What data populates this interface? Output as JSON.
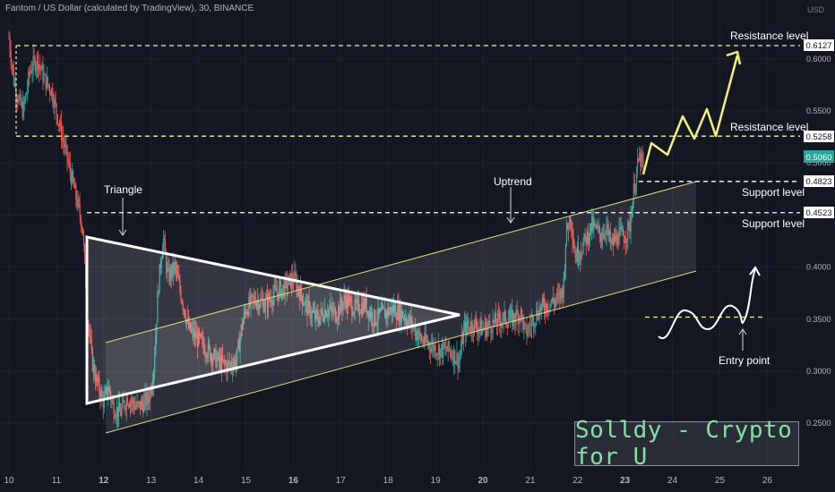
{
  "header": {
    "title": "Fantom / US Dollar (calculated by TradingView), 30, BINANCE",
    "currency": "USD"
  },
  "watermark": "Solldy - Crypto for U",
  "chart_data": {
    "type": "candlestick",
    "price_axis": {
      "min": 0.2,
      "max": 0.66,
      "ticks": [
        0.25,
        0.3,
        0.35,
        0.4,
        0.45,
        0.5,
        0.55,
        0.6
      ],
      "tick_labels": [
        "0.2500",
        "0.3000",
        "0.3500",
        "0.4000",
        "0.4500",
        "0.5000",
        "0.5500",
        "0.6000"
      ]
    },
    "time_axis": {
      "ticks": [
        10,
        11,
        12,
        13,
        14,
        15,
        16,
        17,
        18,
        19,
        20,
        21,
        22,
        23,
        24,
        25,
        26
      ],
      "tick_labels": [
        "10",
        "11",
        "12",
        "13",
        "14",
        "15",
        "16",
        "17",
        "18",
        "19",
        "20",
        "21",
        "22",
        "23",
        "24",
        "25",
        "26"
      ],
      "bold": [
        "12",
        "16",
        "20",
        "23"
      ]
    },
    "price_path": [
      [
        10.0,
        0.62
      ],
      [
        10.1,
        0.58
      ],
      [
        10.2,
        0.56
      ],
      [
        10.3,
        0.55
      ],
      [
        10.45,
        0.59
      ],
      [
        10.6,
        0.6
      ],
      [
        10.75,
        0.58
      ],
      [
        10.9,
        0.57
      ],
      [
        11.0,
        0.55
      ],
      [
        11.1,
        0.53
      ],
      [
        11.25,
        0.5
      ],
      [
        11.4,
        0.47
      ],
      [
        11.55,
        0.44
      ],
      [
        11.65,
        0.36
      ],
      [
        11.75,
        0.31
      ],
      [
        11.85,
        0.29
      ],
      [
        12.0,
        0.27
      ],
      [
        12.1,
        0.285
      ],
      [
        12.2,
        0.265
      ],
      [
        12.35,
        0.26
      ],
      [
        12.5,
        0.275
      ],
      [
        12.7,
        0.265
      ],
      [
        12.85,
        0.27
      ],
      [
        12.95,
        0.275
      ],
      [
        13.05,
        0.3
      ],
      [
        13.15,
        0.38
      ],
      [
        13.25,
        0.43
      ],
      [
        13.35,
        0.39
      ],
      [
        13.5,
        0.4
      ],
      [
        13.65,
        0.37
      ],
      [
        13.8,
        0.34
      ],
      [
        14.0,
        0.33
      ],
      [
        14.2,
        0.32
      ],
      [
        14.4,
        0.31
      ],
      [
        14.6,
        0.305
      ],
      [
        14.8,
        0.31
      ],
      [
        14.9,
        0.34
      ],
      [
        15.0,
        0.36
      ],
      [
        15.2,
        0.37
      ],
      [
        15.4,
        0.365
      ],
      [
        15.6,
        0.375
      ],
      [
        15.8,
        0.38
      ],
      [
        16.0,
        0.39
      ],
      [
        16.1,
        0.38
      ],
      [
        16.3,
        0.36
      ],
      [
        16.5,
        0.35
      ],
      [
        16.7,
        0.36
      ],
      [
        16.9,
        0.355
      ],
      [
        17.1,
        0.37
      ],
      [
        17.3,
        0.36
      ],
      [
        17.5,
        0.365
      ],
      [
        17.7,
        0.35
      ],
      [
        17.9,
        0.355
      ],
      [
        18.1,
        0.36
      ],
      [
        18.3,
        0.355
      ],
      [
        18.5,
        0.345
      ],
      [
        18.7,
        0.33
      ],
      [
        18.9,
        0.325
      ],
      [
        19.1,
        0.32
      ],
      [
        19.3,
        0.32
      ],
      [
        19.5,
        0.31
      ],
      [
        19.6,
        0.34
      ],
      [
        19.8,
        0.345
      ],
      [
        20.0,
        0.34
      ],
      [
        20.2,
        0.345
      ],
      [
        20.4,
        0.35
      ],
      [
        20.6,
        0.35
      ],
      [
        20.8,
        0.355
      ],
      [
        20.9,
        0.335
      ],
      [
        21.0,
        0.345
      ],
      [
        21.2,
        0.36
      ],
      [
        21.4,
        0.365
      ],
      [
        21.6,
        0.37
      ],
      [
        21.7,
        0.38
      ],
      [
        21.75,
        0.43
      ],
      [
        21.85,
        0.45
      ],
      [
        21.95,
        0.41
      ],
      [
        22.1,
        0.42
      ],
      [
        22.3,
        0.44
      ],
      [
        22.5,
        0.43
      ],
      [
        22.6,
        0.44
      ],
      [
        22.7,
        0.42
      ],
      [
        22.85,
        0.43
      ],
      [
        23.0,
        0.43
      ],
      [
        23.1,
        0.44
      ],
      [
        23.2,
        0.48
      ],
      [
        23.3,
        0.505
      ],
      [
        23.4,
        0.495
      ]
    ],
    "horizontal_levels": [
      {
        "label": "Resistance level",
        "value": 0.6127,
        "tag": "0.6127"
      },
      {
        "label": "Resistance level",
        "value": 0.5258,
        "tag": "0.5258"
      },
      {
        "label": "Support level",
        "value": 0.4823,
        "tag": "0.4823"
      },
      {
        "label": "Support level",
        "value": 0.4523,
        "tag": "0.4523"
      },
      {
        "label": "",
        "value": 0.352,
        "tag": ""
      }
    ],
    "current_price": "0.5060",
    "annotations": [
      {
        "text": "Triangle"
      },
      {
        "text": "Uptrend"
      },
      {
        "text": "Entry point"
      }
    ],
    "colors": {
      "up": "#26a69a",
      "down": "#ef5350",
      "level": "#f5f0a0",
      "projection": "#f5f07a",
      "current_tag": "#26a69a",
      "background": "#131722"
    }
  }
}
